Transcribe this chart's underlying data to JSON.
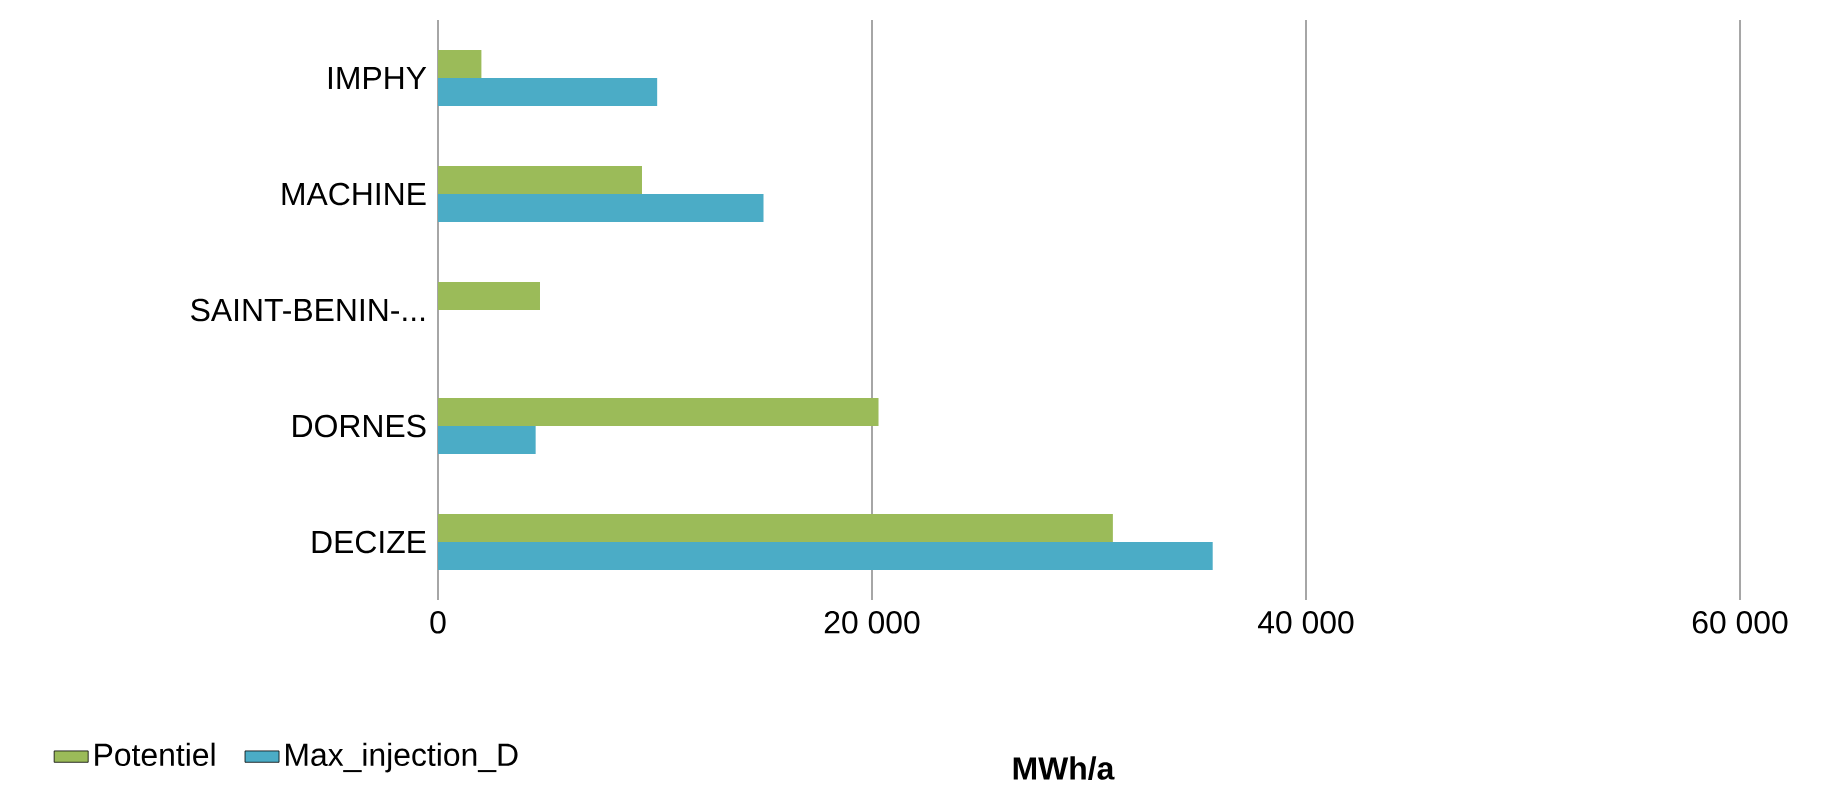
{
  "chart_data": {
    "type": "bar",
    "orientation": "horizontal",
    "xlabel": "MWh/a",
    "categories": [
      "IMPHY",
      "MACHINE",
      "SAINT-BENIN-...",
      "DORNES",
      "DECIZE"
    ],
    "series": [
      {
        "name": "Potentiel",
        "color": "#9bbb59",
        "values": [
          2000,
          9400,
          4700,
          20300,
          31100
        ]
      },
      {
        "name": "Max_injection_D",
        "color": "#4bacc6",
        "values": [
          10100,
          15000,
          null,
          4500,
          35700
        ]
      }
    ],
    "xlim": [
      0,
      60000
    ],
    "xticks": [
      0,
      {
        "value": 20000,
        "label": "20 000"
      },
      {
        "value": 40000,
        "label": "40 000"
      },
      {
        "value": 60000,
        "label": "60 000"
      }
    ],
    "grid": "x",
    "legend": "bottom left"
  }
}
